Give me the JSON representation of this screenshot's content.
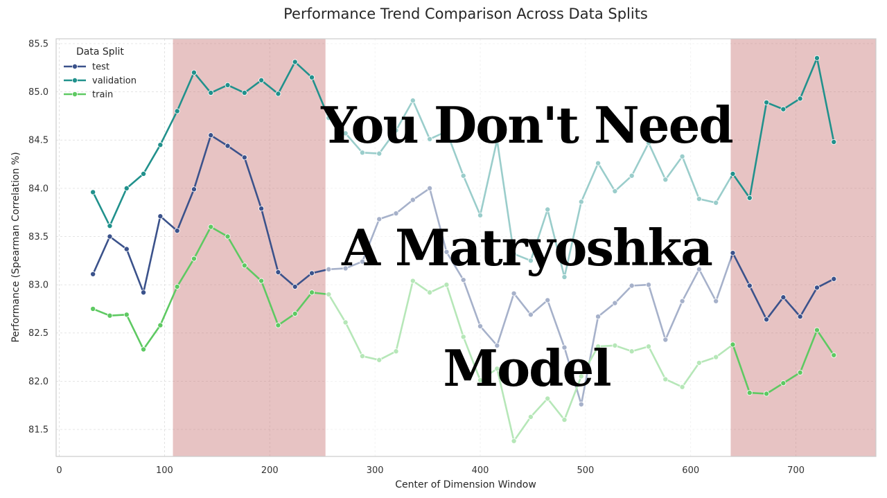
{
  "chart_data": {
    "type": "line",
    "title": "Performance Trend Comparison Across Data Splits",
    "xlabel": "Center of Dimension Window",
    "ylabel": "Performance (Spearman Correlation %)",
    "xlim": [
      -3,
      776
    ],
    "ylim": [
      81.22,
      85.55
    ],
    "xticks": [
      0,
      100,
      200,
      300,
      400,
      500,
      600,
      700
    ],
    "yticks": [
      81.5,
      82.0,
      82.5,
      83.0,
      83.5,
      84.0,
      84.5,
      85.0,
      85.5
    ],
    "xtick_labels": [
      "0",
      "100",
      "200",
      "300",
      "400",
      "500",
      "600",
      "700"
    ],
    "ytick_labels": [
      "81.5",
      "82.0",
      "82.5",
      "83.0",
      "83.5",
      "84.0",
      "84.5",
      "85.0",
      "85.5"
    ],
    "grid": true,
    "legend": {
      "title": "Data Split",
      "placement": "top-left"
    },
    "x": [
      32,
      48,
      64,
      80,
      96,
      112,
      128,
      144,
      160,
      176,
      192,
      208,
      224,
      240,
      256,
      272,
      288,
      304,
      320,
      336,
      352,
      368,
      384,
      400,
      416,
      432,
      448,
      464,
      480,
      496,
      512,
      528,
      544,
      560,
      576,
      592,
      608,
      624,
      640,
      656,
      672,
      688,
      704,
      720,
      736
    ],
    "series": [
      {
        "name": "test",
        "color": "#3b528b",
        "values": [
          83.11,
          83.5,
          83.37,
          82.92,
          83.71,
          83.56,
          83.99,
          84.55,
          84.44,
          84.32,
          83.79,
          83.13,
          82.98,
          83.12,
          83.16,
          83.17,
          83.24,
          83.68,
          83.74,
          83.88,
          84.0,
          83.34,
          83.05,
          82.57,
          82.37,
          82.91,
          82.69,
          82.84,
          82.35,
          81.76,
          82.67,
          82.81,
          82.99,
          83.0,
          82.43,
          82.83,
          83.16,
          82.83,
          83.33,
          82.99,
          82.64,
          82.87,
          82.67,
          82.97,
          83.06
        ]
      },
      {
        "name": "validation",
        "color": "#21918c",
        "values": [
          83.96,
          83.61,
          84.0,
          84.15,
          84.45,
          84.8,
          85.2,
          84.99,
          85.07,
          84.99,
          85.12,
          84.98,
          85.31,
          85.15,
          84.73,
          84.57,
          84.37,
          84.36,
          84.6,
          84.91,
          84.51,
          84.59,
          84.13,
          83.72,
          84.5,
          83.32,
          83.25,
          83.78,
          83.08,
          83.86,
          84.26,
          83.97,
          84.13,
          84.47,
          84.09,
          84.33,
          83.89,
          83.85,
          84.15,
          83.9,
          84.89,
          84.82,
          84.93,
          85.35,
          84.48
        ]
      },
      {
        "name": "train",
        "color": "#5ec962",
        "values": [
          82.75,
          82.68,
          82.69,
          82.33,
          82.58,
          82.98,
          83.27,
          83.6,
          83.5,
          83.2,
          83.04,
          82.58,
          82.7,
          82.92,
          82.9,
          82.61,
          82.26,
          82.22,
          82.31,
          83.04,
          82.92,
          83.0,
          82.46,
          82.01,
          82.13,
          81.38,
          81.63,
          81.82,
          81.6,
          82.05,
          82.36,
          82.37,
          82.31,
          82.36,
          82.02,
          81.94,
          82.19,
          82.25,
          82.38,
          81.88,
          81.87,
          81.98,
          82.09,
          82.53,
          82.27
        ]
      }
    ],
    "shaded_regions": [
      {
        "x0": 108,
        "x1": 253,
        "color": "#c97b7b"
      },
      {
        "x0": 638,
        "x1": 776,
        "color": "#c97b7b"
      }
    ],
    "highlight_window": {
      "x0": 253,
      "x1": 638
    },
    "overlay_text": [
      "You Don't Need",
      "A Matryoshka",
      "Model"
    ]
  }
}
